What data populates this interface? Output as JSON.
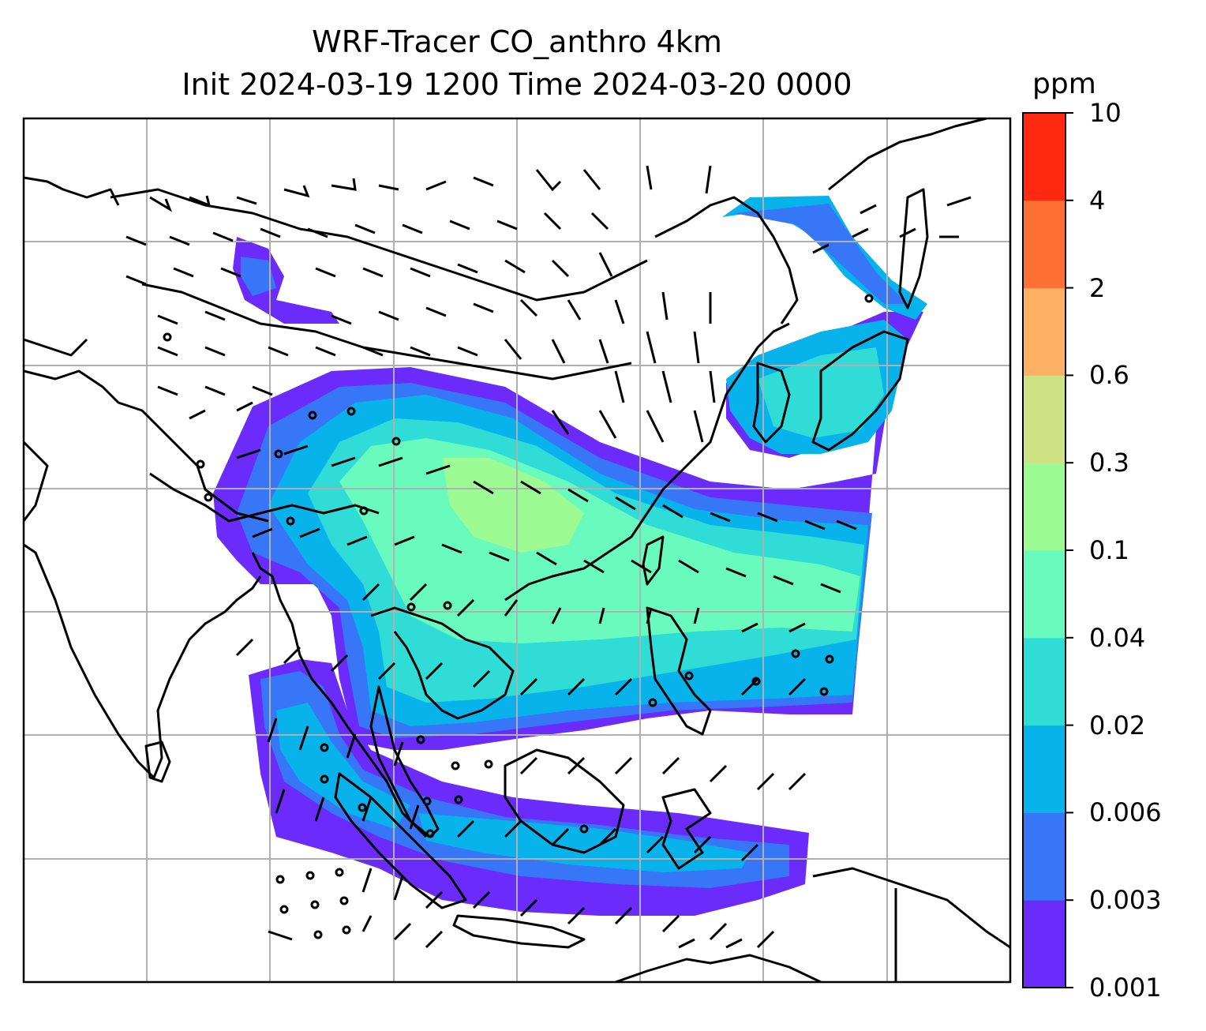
{
  "title_line1": "WRF-Tracer CO_anthro 4km",
  "title_line2": "Init 2024-03-19 1200 Time 2024-03-20 0000",
  "colorbar": {
    "unit": "ppm",
    "levels": [
      "0.001",
      "0.003",
      "0.006",
      "0.02",
      "0.04",
      "0.1",
      "0.3",
      "0.6",
      "2",
      "4",
      "10"
    ],
    "colors": [
      "#6a2bfb",
      "#3776f6",
      "#08b3ec",
      "#2fdcd6",
      "#68fbbd",
      "#9dfb94",
      "#cfe283",
      "#feb064",
      "#ff7035",
      "#ff2912"
    ]
  }
}
